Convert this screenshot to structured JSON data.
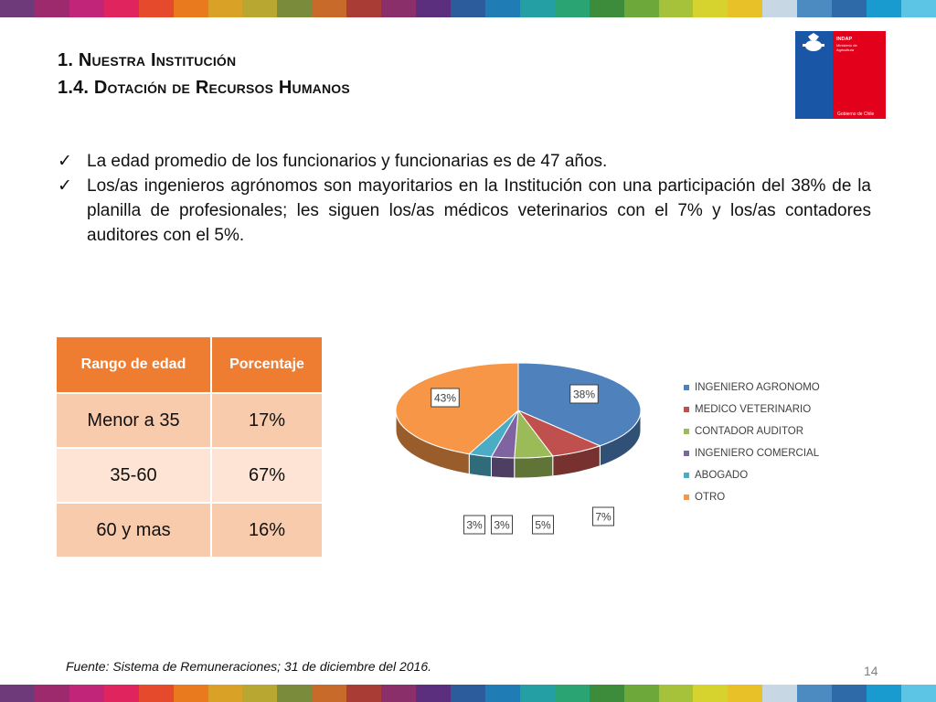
{
  "slide": {
    "title_line1": "1. Nuestra Institución",
    "title_line2": "1.4. Dotación de Recursos Humanos",
    "bullets": [
      "La edad promedio de los funcionarios y funcionarias es de 47 años.",
      "Los/as ingenieros agrónomos son mayoritarios en la Institución con una participación del 38% de la planilla de profesionales; les siguen los/as médicos veterinarios con el 7% y los/as contadores auditores con el 5%."
    ],
    "source": "Fuente: Sistema de Remuneraciones; 31 de diciembre del 2016.",
    "page_number": "14"
  },
  "logo": {
    "line1": "INDAP",
    "line2": "Ministerio de",
    "line3": "Agricultura",
    "footer": "Gobierno de Chile",
    "colors": {
      "blue": "#1a56a6",
      "red": "#e3001b"
    }
  },
  "table": {
    "headers": [
      "Rango de edad",
      "Porcentaje"
    ],
    "rows": [
      [
        "Menor a 35",
        "17%"
      ],
      [
        "35-60",
        "67%"
      ],
      [
        "60 y mas",
        "16%"
      ]
    ],
    "header_color": "#ee7d31"
  },
  "chart_data": {
    "type": "pie",
    "style": "3d",
    "labels": [
      "INGENIERO AGRONOMO",
      "MEDICO VETERINARIO",
      "CONTADOR AUDITOR",
      "INGENIERO COMERCIAL",
      "ABOGADO",
      "OTRO"
    ],
    "values": [
      38,
      7,
      5,
      3,
      3,
      43
    ],
    "value_labels": [
      "38%",
      "7%",
      "5%",
      "3%",
      "3%",
      "43%"
    ],
    "colors": [
      "#4f81bd",
      "#c0504d",
      "#9bbb59",
      "#8064a2",
      "#4bacc6",
      "#f79646"
    ],
    "legend_position": "right"
  },
  "stripe_colors": [
    "#6e3a7a",
    "#9e2a6e",
    "#c1257a",
    "#e0245e",
    "#e44a2b",
    "#ea7a1e",
    "#d9a125",
    "#b8a832",
    "#7a8c3b",
    "#c86a2a",
    "#a93c35",
    "#8a2f6a",
    "#5b2e7e",
    "#2c5c9c",
    "#1f7cb4",
    "#249fa3",
    "#2aa472",
    "#3d8c3b",
    "#6da83a",
    "#a6c23a",
    "#d6d22e",
    "#e8c128",
    "#c7d7e4",
    "#4b8bc2",
    "#2f6aa8",
    "#1a9bd0",
    "#5cc4e5"
  ]
}
